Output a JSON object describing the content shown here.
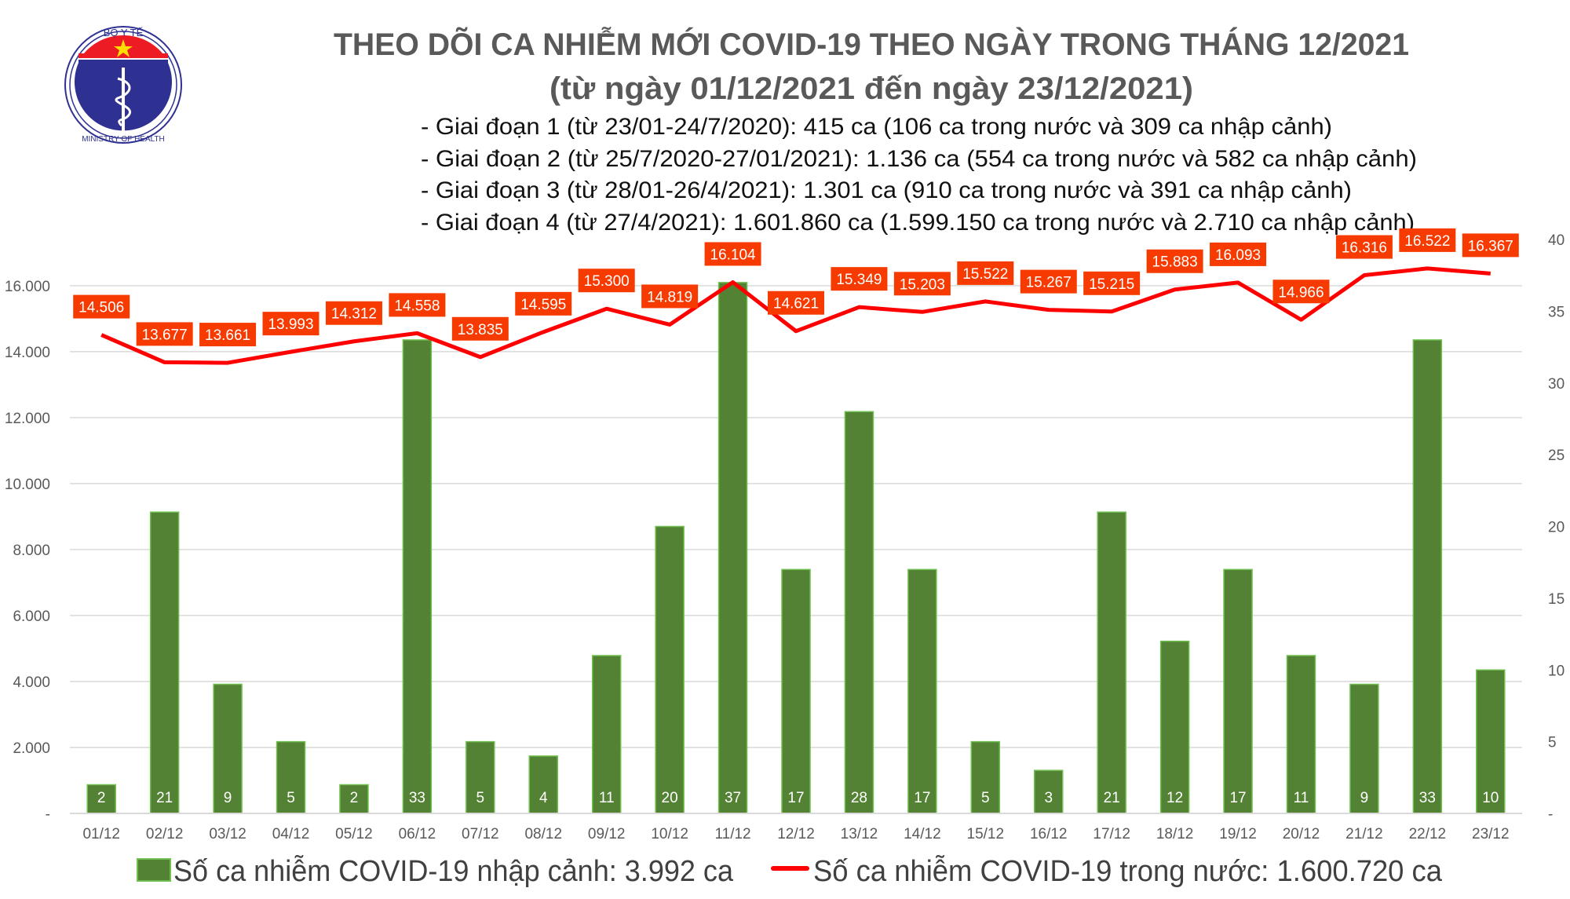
{
  "logo": {
    "top_text": "BỘ Y TẾ",
    "bottom_text": "MINISTRY OF HEALTH"
  },
  "header": {
    "title": "THEO DÕI CA NHIỄM MỚI COVID-19 THEO NGÀY TRONG THÁNG 12/2021",
    "subtitle": "(từ ngày 01/12/2021 đến ngày 23/12/2021)",
    "phases": [
      "- Giai đoạn 1 (từ 23/01-24/7/2020): 415 ca (106 ca trong nước và 309 ca nhập cảnh)",
      "- Giai đoạn 2 (từ 25/7/2020-27/01/2021): 1.136 ca (554 ca trong nước và 582 ca nhập cảnh)",
      "- Giai đoạn 3 (từ 28/01-26/4/2021): 1.301 ca (910 ca trong nước và 391 ca nhập cảnh)",
      "- Giai đoạn 4 (từ 27/4/2021): 1.601.860 ca (1.599.150 ca trong nước và 2.710 ca nhập cảnh)"
    ]
  },
  "colors": {
    "bar": "#548235",
    "bar_border": "#70c050",
    "line": "#ff0000",
    "label_bg": "#f73b00",
    "grid": "#d9d9d9",
    "title": "#595959"
  },
  "chart_data": {
    "type": "bar+line",
    "categories": [
      "01/12",
      "02/12",
      "03/12",
      "04/12",
      "05/12",
      "06/12",
      "07/12",
      "08/12",
      "09/12",
      "10/12",
      "11/12",
      "12/12",
      "13/12",
      "14/12",
      "15/12",
      "16/12",
      "17/12",
      "18/12",
      "19/12",
      "20/12",
      "21/12",
      "22/12",
      "23/12"
    ],
    "series": [
      {
        "name": "Số ca nhiễm COVID-19 nhập cảnh: 3.992 ca",
        "type": "bar",
        "axis": "right",
        "values": [
          2,
          21,
          9,
          5,
          2,
          33,
          5,
          4,
          11,
          20,
          37,
          17,
          28,
          17,
          5,
          3,
          21,
          12,
          17,
          11,
          9,
          33,
          10
        ]
      },
      {
        "name": "Số ca nhiễm COVID-19 trong nước: 1.600.720 ca",
        "type": "line",
        "axis": "left",
        "values": [
          14506,
          13677,
          13661,
          13993,
          14312,
          14558,
          13835,
          14595,
          15300,
          14819,
          16104,
          14621,
          15349,
          15203,
          15522,
          15267,
          15215,
          15883,
          16093,
          14966,
          16316,
          16522,
          16367
        ]
      }
    ],
    "left_axis": {
      "ylim": [
        0,
        17400
      ],
      "ticks": [
        0,
        2000,
        4000,
        6000,
        8000,
        10000,
        12000,
        14000,
        16000
      ],
      "tick_labels": [
        "-",
        "2.000",
        "4.000",
        "6.000",
        "8.000",
        "10.000",
        "12.000",
        "14.000",
        "16.000"
      ]
    },
    "right_axis": {
      "ylim": [
        0,
        40
      ],
      "ticks": [
        0,
        5,
        10,
        15,
        20,
        25,
        30,
        35,
        40
      ],
      "tick_labels": [
        "-",
        "5",
        "10",
        "15",
        "20",
        "25",
        "30",
        "35",
        "40"
      ]
    },
    "line_labels": [
      "14.506",
      "13.677",
      "13.661",
      "13.993",
      "14.312",
      "14.558",
      "13.835",
      "14.595",
      "15.300",
      "14.819",
      "16.104",
      "14.621",
      "15.349",
      "15.203",
      "15.522",
      "15.267",
      "15.215",
      "15.883",
      "16.093",
      "14.966",
      "16.316",
      "16.522",
      "16.367"
    ],
    "grid": true,
    "legend_position": "bottom"
  }
}
